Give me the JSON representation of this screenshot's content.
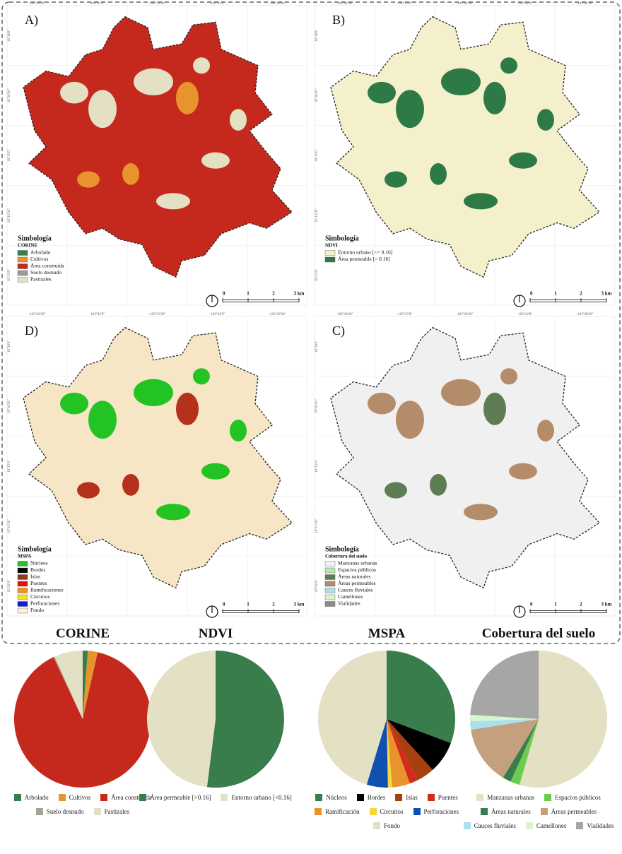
{
  "maps": [
    {
      "label": "A)",
      "legend_title": "Simbología",
      "legend_subtitle": "CORINE",
      "base": "#c5281c",
      "patch": "#e4e0c4",
      "patch2": "#e8932c",
      "items": [
        {
          "label": "Arbolado",
          "color": "#3a7d4c"
        },
        {
          "label": "Cultivos",
          "color": "#e8932c"
        },
        {
          "label": "Área construida",
          "color": "#c5281c"
        },
        {
          "label": "Suelo desnudo",
          "color": "#9a9a9a"
        },
        {
          "label": "Pastizales",
          "color": "#e4e0c4"
        }
      ]
    },
    {
      "label": "B)",
      "legend_title": "Simbología",
      "legend_subtitle": "NDVI",
      "base": "#f5f0cc",
      "patch": "#2e7a46",
      "patch2": "#2e7a46",
      "items": [
        {
          "label": "Entorno urbano [<= 0.16]",
          "color": "#f5f0cc"
        },
        {
          "label": "Área permeable [> 0.16]",
          "color": "#2e7a46"
        }
      ]
    },
    {
      "label": "D)",
      "legend_title": "Simbología",
      "legend_subtitle": "MSPA",
      "base": "#f6e6c6",
      "patch": "#22c322",
      "patch2": "#b5311c",
      "items": [
        {
          "label": "Núcleos",
          "color": "#22c322"
        },
        {
          "label": "Bordes",
          "color": "#000000"
        },
        {
          "label": "Islas",
          "color": "#8b3a1a"
        },
        {
          "label": "Puentes",
          "color": "#e01010"
        },
        {
          "label": "Ramificaciones",
          "color": "#f0921e"
        },
        {
          "label": "Circuitos",
          "color": "#f5e020"
        },
        {
          "label": "Perforaciones",
          "color": "#1020d0"
        },
        {
          "label": "Fondo",
          "color": "#f8f0d8"
        }
      ]
    },
    {
      "label": "C)",
      "legend_title": "Simbología",
      "legend_subtitle": "Cobertura del suelo",
      "base": "#f0f0f0",
      "patch": "#b48c6a",
      "patch2": "#5e7d55",
      "items": [
        {
          "label": "Manzanas urbanas",
          "color": "#f2f2f2"
        },
        {
          "label": "Espacios públicos",
          "color": "#b8e8b0"
        },
        {
          "label": "Áreas naturales",
          "color": "#5e7d55"
        },
        {
          "label": "Áreas permeables",
          "color": "#b48c6a"
        },
        {
          "label": "Cauces fluviales",
          "color": "#b0dde8"
        },
        {
          "label": "Camellones",
          "color": "#d8f5c8"
        },
        {
          "label": "Vialidades",
          "color": "#8a8a8a"
        }
      ]
    }
  ],
  "scale_labels": [
    "0",
    "1",
    "2",
    "3 km"
  ],
  "coords_top": [
    "-103°46'30\"",
    "-103°45'0\"",
    "-103°43'30\"",
    "-103°42'0\"",
    "-103°40'30\""
  ],
  "coords_left": [
    "19°18'0\"",
    "19°16'30\"",
    "19°15'0\"",
    "19°13'30\"",
    "19°12'0\""
  ],
  "chart_data": [
    {
      "type": "pie",
      "title": "CORINE",
      "categories": [
        "Arbolado",
        "Cultivos",
        "Área construida",
        "Suelo desnudo",
        "Pastizales"
      ],
      "values": [
        1.2,
        2.3,
        89.5,
        0.3,
        6.7
      ],
      "colors": [
        "#3a7d4c",
        "#e8932c",
        "#c5281c",
        "#a8a39a",
        "#e4e0c4"
      ]
    },
    {
      "type": "pie",
      "title": "NDVI",
      "categories": [
        "Área permeable [>0.16]",
        "Entorno urbano [<0.16]"
      ],
      "values": [
        52,
        48
      ],
      "colors": [
        "#3a7d4c",
        "#e4e0c4"
      ]
    },
    {
      "type": "pie",
      "title": "MSPA",
      "categories": [
        "Núcleos",
        "Bordes",
        "Islas",
        "Puentes",
        "Ramificación",
        "Circuitos",
        "Perforaciones",
        "Fondo"
      ],
      "values": [
        30.7,
        7.6,
        4.2,
        2,
        4.2,
        1,
        5,
        45.3
      ],
      "colors": [
        "#3a7d4c",
        "#000000",
        "#a8400e",
        "#d42a1e",
        "#e8932c",
        "#f5d840",
        "#1050b0",
        "#e4e0c4"
      ]
    },
    {
      "type": "pie",
      "title": "Cobertura del suelo",
      "categories": [
        "Manzanas urbanas",
        "Espacios públicos",
        "Áreas naturales",
        "Áreas permeables",
        "Cauces fluviales",
        "Camellones",
        "Vialidades"
      ],
      "values": [
        54.5,
        2.2,
        2,
        13.8,
        2,
        1.5,
        24
      ],
      "colors": [
        "#e4e0c4",
        "#6ccc50",
        "#3a7d4c",
        "#c4a07e",
        "#a8e0ec",
        "#d8f5d0",
        "#a6a6a6"
      ]
    }
  ]
}
